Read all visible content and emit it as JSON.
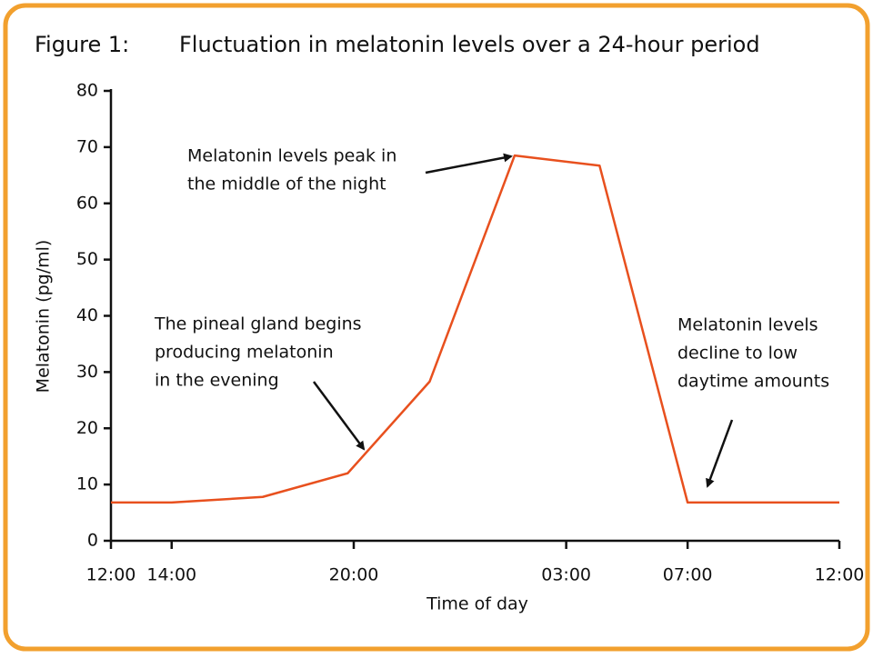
{
  "chart_data": {
    "type": "line",
    "figure_label": "Figure 1:",
    "title": "Fluctuation in melatonin levels over a 24-hour period",
    "x_label": "Time of day",
    "y_label": "Melatonin (pg/ml)",
    "x": [
      0,
      2,
      5,
      7.8,
      10.5,
      13.3,
      16.1,
      19,
      24
    ],
    "series": [
      {
        "color": "#e8501e",
        "values": [
          6.8,
          6.8,
          7.8,
          12,
          28.3,
          68.5,
          66.7,
          6.8,
          6.8
        ]
      }
    ],
    "xlim": [
      0,
      24
    ],
    "xticks": [
      {
        "value": 0,
        "label": "12:00"
      },
      {
        "value": 2,
        "label": "14:00"
      },
      {
        "value": 8,
        "label": "20:00"
      },
      {
        "value": 15,
        "label": "03:00"
      },
      {
        "value": 19,
        "label": "07:00"
      },
      {
        "value": 24,
        "label": "12:00"
      }
    ],
    "ylim": [
      0,
      80
    ],
    "yticks": [
      0,
      10,
      20,
      30,
      40,
      50,
      60,
      70,
      80
    ],
    "annotations": [
      {
        "lines": [
          "Melatonin levels peak in",
          "the middle of the night"
        ]
      },
      {
        "lines": [
          "The pineal gland begins",
          "producing melatonin",
          "in the evening"
        ]
      },
      {
        "lines": [
          "Melatonin levels",
          "decline to low",
          "daytime amounts"
        ]
      }
    ]
  }
}
